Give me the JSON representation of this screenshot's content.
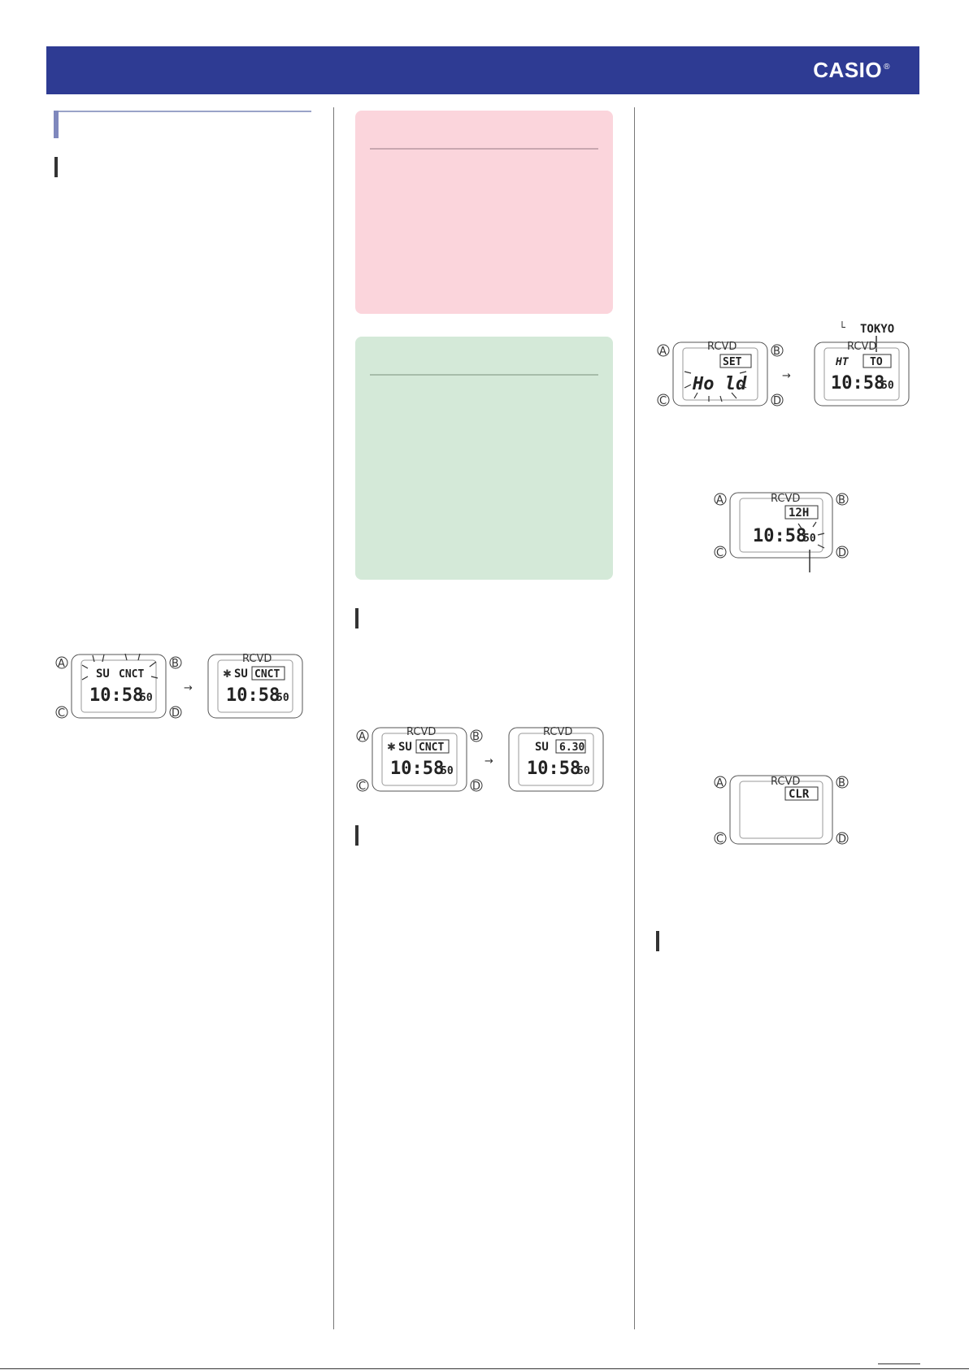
{
  "header": {
    "brand": "CASIO",
    "brand_mark": "®"
  },
  "buttons": {
    "a": "A",
    "b": "B",
    "c": "C",
    "d": "D"
  },
  "arrow": "→",
  "watch1": {
    "top_left": "SU",
    "top_right": "CNCT",
    "time": "10:58",
    "sec": "50"
  },
  "watch2": {
    "indicator": "RCVD",
    "top_left": "SU",
    "top_right": "CNCT",
    "time": "10:58",
    "sec": "50"
  },
  "watch3": {
    "indicator": "RCVD",
    "top_left": "SU",
    "top_right": "CNCT",
    "time": "10:58",
    "sec": "50"
  },
  "watch4": {
    "indicator": "RCVD",
    "top_left": "SU",
    "top_right": "6.30",
    "time": "10:58",
    "sec": "50"
  },
  "watch5": {
    "indicator": "RCVD",
    "top_right": "SET",
    "main": "Ho ld"
  },
  "watch6": {
    "indicator": "RCVD",
    "top_left": "HT",
    "top_right": "TO",
    "time": "10:58",
    "sec": "50",
    "callout": "TOKYO"
  },
  "watch7": {
    "indicator": "RCVD",
    "top_right": "12H",
    "time": "10:58",
    "sec": "50"
  },
  "watch8": {
    "indicator": "RCVD",
    "top_right": "CLR"
  }
}
